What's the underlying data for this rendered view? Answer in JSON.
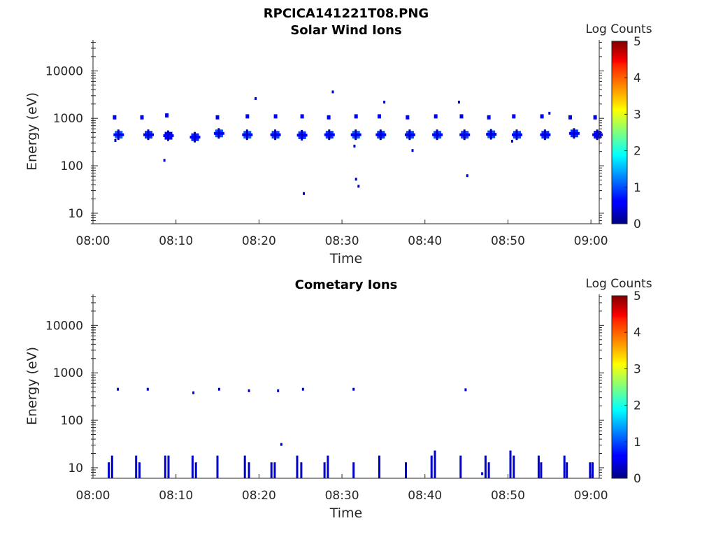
{
  "figure_title": "RPCICA141221T08.PNG",
  "chart_data": [
    {
      "type": "heatmap",
      "title": "Solar Wind Ions",
      "xlabel": "Time",
      "ylabel": "Energy (eV)",
      "yscale": "log",
      "ylim": [
        6,
        45000
      ],
      "xlim_minutes": [
        0,
        61
      ],
      "x_ticks": [
        "08:00",
        "08:10",
        "08:20",
        "08:30",
        "08:40",
        "08:50",
        "09:00"
      ],
      "y_ticks": [
        "10",
        "100",
        "1000",
        "10000"
      ],
      "colorbar": {
        "label": "Log Counts",
        "ticks": [
          "0",
          "1",
          "2",
          "3",
          "4",
          "5"
        ],
        "range": [
          0,
          5
        ]
      },
      "grid": false,
      "clusters": [
        {
          "t": 3.1,
          "e": 450,
          "v": 0.9
        },
        {
          "t": 2.6,
          "e": 1050,
          "v": 0.4
        },
        {
          "t": 5.9,
          "e": 1050,
          "v": 0.4
        },
        {
          "t": 6.7,
          "e": 450,
          "v": 0.7
        },
        {
          "t": 9.1,
          "e": 430,
          "v": 0.4
        },
        {
          "t": 8.9,
          "e": 1150,
          "v": 0.3
        },
        {
          "t": 12.3,
          "e": 400,
          "v": 0.6
        },
        {
          "t": 15.2,
          "e": 480,
          "v": 0.8
        },
        {
          "t": 15.0,
          "e": 1050,
          "v": 0.3
        },
        {
          "t": 18.6,
          "e": 450,
          "v": 0.9
        },
        {
          "t": 18.6,
          "e": 1100,
          "v": 0.4
        },
        {
          "t": 22.0,
          "e": 450,
          "v": 0.8
        },
        {
          "t": 22.0,
          "e": 1100,
          "v": 0.4
        },
        {
          "t": 25.2,
          "e": 440,
          "v": 0.7
        },
        {
          "t": 25.2,
          "e": 1100,
          "v": 0.4
        },
        {
          "t": 28.5,
          "e": 450,
          "v": 0.7
        },
        {
          "t": 28.4,
          "e": 1050,
          "v": 0.4
        },
        {
          "t": 31.7,
          "e": 450,
          "v": 0.9
        },
        {
          "t": 31.7,
          "e": 1100,
          "v": 0.4
        },
        {
          "t": 34.7,
          "e": 450,
          "v": 0.7
        },
        {
          "t": 34.5,
          "e": 1100,
          "v": 0.3
        },
        {
          "t": 38.2,
          "e": 450,
          "v": 0.8
        },
        {
          "t": 37.9,
          "e": 1050,
          "v": 0.4
        },
        {
          "t": 41.5,
          "e": 450,
          "v": 0.8
        },
        {
          "t": 41.3,
          "e": 1100,
          "v": 0.4
        },
        {
          "t": 44.8,
          "e": 450,
          "v": 0.8
        },
        {
          "t": 44.4,
          "e": 1100,
          "v": 0.3
        },
        {
          "t": 48.0,
          "e": 460,
          "v": 0.8
        },
        {
          "t": 47.7,
          "e": 1050,
          "v": 0.4
        },
        {
          "t": 51.1,
          "e": 450,
          "v": 0.8
        },
        {
          "t": 50.7,
          "e": 1100,
          "v": 0.4
        },
        {
          "t": 54.5,
          "e": 450,
          "v": 0.7
        },
        {
          "t": 54.1,
          "e": 1100,
          "v": 0.4
        },
        {
          "t": 58.0,
          "e": 480,
          "v": 0.7
        },
        {
          "t": 57.5,
          "e": 1050,
          "v": 0.3
        },
        {
          "t": 60.8,
          "e": 450,
          "v": 0.5
        },
        {
          "t": 60.5,
          "e": 1050,
          "v": 0.3
        }
      ],
      "points": [
        {
          "t": 2.7,
          "e": 340
        },
        {
          "t": 8.6,
          "e": 130
        },
        {
          "t": 19.6,
          "e": 2600
        },
        {
          "t": 25.4,
          "e": 26
        },
        {
          "t": 28.9,
          "e": 3600
        },
        {
          "t": 31.5,
          "e": 260
        },
        {
          "t": 31.7,
          "e": 52
        },
        {
          "t": 32.0,
          "e": 37
        },
        {
          "t": 35.1,
          "e": 2200
        },
        {
          "t": 38.5,
          "e": 210
        },
        {
          "t": 44.1,
          "e": 2200
        },
        {
          "t": 45.1,
          "e": 62
        },
        {
          "t": 50.5,
          "e": 330
        },
        {
          "t": 55.0,
          "e": 1280
        }
      ]
    },
    {
      "type": "heatmap",
      "title": "Cometary Ions",
      "xlabel": "Time",
      "ylabel": "Energy (eV)",
      "yscale": "log",
      "ylim": [
        6,
        45000
      ],
      "xlim_minutes": [
        0,
        61
      ],
      "x_ticks": [
        "08:00",
        "08:10",
        "08:20",
        "08:30",
        "08:40",
        "08:50",
        "09:00"
      ],
      "y_ticks": [
        "10",
        "100",
        "1000",
        "10000"
      ],
      "colorbar": {
        "label": "Log Counts",
        "ticks": [
          "0",
          "1",
          "2",
          "3",
          "4",
          "5"
        ],
        "range": [
          0,
          5
        ]
      },
      "grid": false,
      "bars": [
        {
          "t": 1.9,
          "top": 13
        },
        {
          "t": 2.3,
          "top": 18
        },
        {
          "t": 5.2,
          "top": 18
        },
        {
          "t": 5.6,
          "top": 13
        },
        {
          "t": 8.7,
          "top": 18
        },
        {
          "t": 9.1,
          "top": 18
        },
        {
          "t": 12.0,
          "top": 18
        },
        {
          "t": 12.4,
          "top": 13
        },
        {
          "t": 15.0,
          "top": 18
        },
        {
          "t": 18.3,
          "top": 18
        },
        {
          "t": 18.8,
          "top": 13
        },
        {
          "t": 21.5,
          "top": 13
        },
        {
          "t": 21.9,
          "top": 13
        },
        {
          "t": 24.6,
          "top": 18
        },
        {
          "t": 25.1,
          "top": 13
        },
        {
          "t": 27.9,
          "top": 13
        },
        {
          "t": 28.3,
          "top": 18
        },
        {
          "t": 31.4,
          "top": 13
        },
        {
          "t": 34.5,
          "top": 18
        },
        {
          "t": 37.7,
          "top": 13
        },
        {
          "t": 40.8,
          "top": 18
        },
        {
          "t": 41.2,
          "top": 23
        },
        {
          "t": 44.3,
          "top": 18
        },
        {
          "t": 47.3,
          "top": 18
        },
        {
          "t": 47.7,
          "top": 13
        },
        {
          "t": 50.3,
          "top": 23
        },
        {
          "t": 50.7,
          "top": 18
        },
        {
          "t": 53.7,
          "top": 18
        },
        {
          "t": 54.0,
          "top": 13
        },
        {
          "t": 56.8,
          "top": 18
        },
        {
          "t": 57.1,
          "top": 13
        },
        {
          "t": 59.9,
          "top": 13
        },
        {
          "t": 60.2,
          "top": 13
        }
      ],
      "points": [
        {
          "t": 3.0,
          "e": 450
        },
        {
          "t": 6.6,
          "e": 450
        },
        {
          "t": 12.1,
          "e": 380
        },
        {
          "t": 15.2,
          "e": 450
        },
        {
          "t": 18.8,
          "e": 420
        },
        {
          "t": 22.3,
          "e": 420
        },
        {
          "t": 25.3,
          "e": 450
        },
        {
          "t": 31.4,
          "e": 450
        },
        {
          "t": 44.9,
          "e": 440
        },
        {
          "t": 22.7,
          "e": 31
        },
        {
          "t": 46.9,
          "e": 7.5
        }
      ]
    }
  ]
}
